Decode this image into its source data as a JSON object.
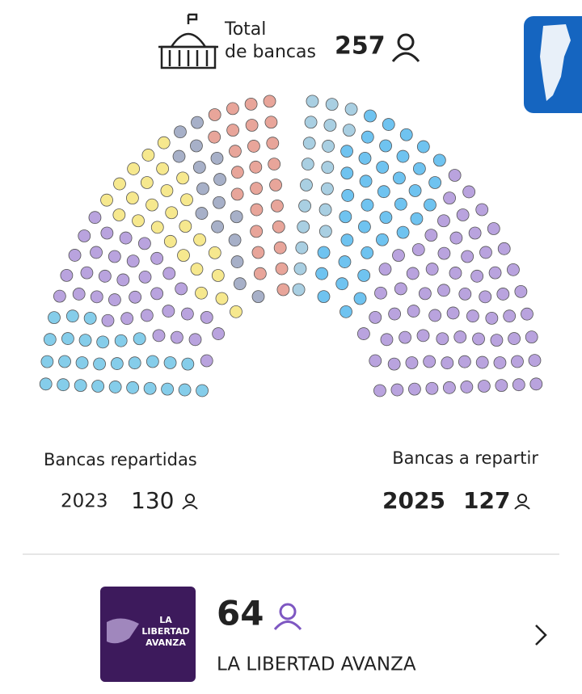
{
  "header": {
    "label_line1": "Total",
    "label_line2": "de bancas",
    "total": 257
  },
  "left": {
    "label": "Bancas repartidas",
    "year": "2023",
    "seats": 130
  },
  "right": {
    "label": "Bancas a repartir",
    "year": "2025",
    "seats": 127
  },
  "party": {
    "logo_line1": "LA",
    "logo_line2": "LIBERTAD",
    "logo_line3": "AVANZA",
    "seats": 64,
    "name": "LA LIBERTAD AVANZA"
  }
}
